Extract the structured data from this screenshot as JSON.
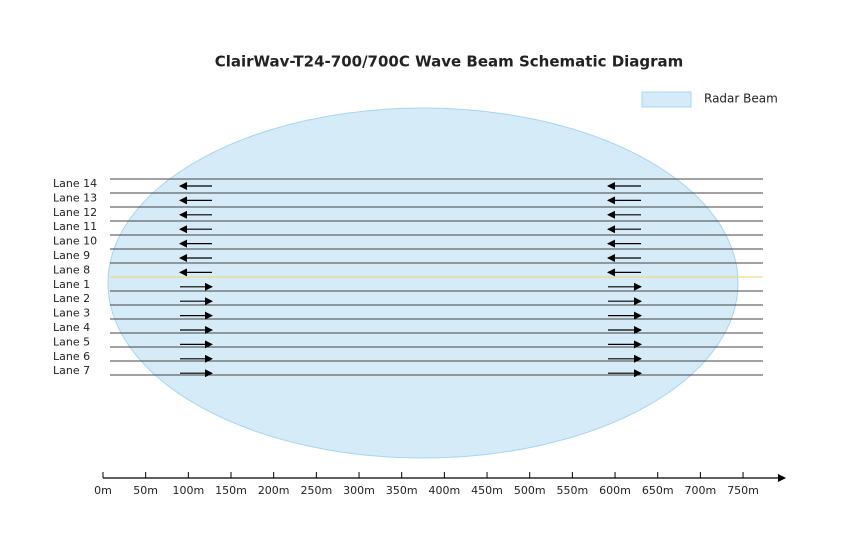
{
  "title": "ClairWav-T24-700/700C Wave Beam Schematic Diagram",
  "legend": {
    "label": "Radar Beam"
  },
  "lanes": [
    "Lane 14",
    "Lane 13",
    "Lane 12",
    "Lane 11",
    "Lane 10",
    "Lane 9",
    "Lane 8",
    "Lane 1",
    "Lane 2",
    "Lane 3",
    "Lane 4",
    "Lane 5",
    "Lane 6",
    "Lane 7"
  ],
  "axis": {
    "labels": [
      "0m",
      "50m",
      "100m",
      "150m",
      "200m",
      "250m",
      "300m",
      "350m",
      "400m",
      "450m",
      "500m",
      "550m",
      "600m",
      "650m",
      "700m",
      "750m"
    ]
  }
}
